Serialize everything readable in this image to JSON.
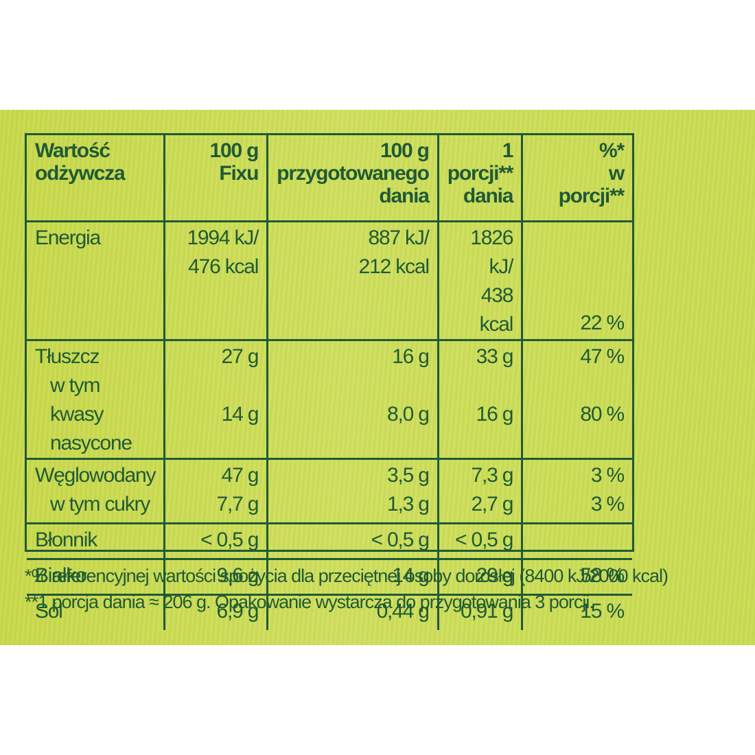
{
  "header": {
    "col0": [
      "Wartość",
      "odżywcza"
    ],
    "col1": [
      "100 g",
      "Fixu"
    ],
    "col2": [
      "100 g",
      "przygotowanego",
      "dania"
    ],
    "col3": [
      "1",
      "porcji**",
      "dania"
    ],
    "col4": [
      "%*",
      "w",
      "porcji**"
    ]
  },
  "rows": {
    "energia": {
      "label": "Energia",
      "v1": [
        "1994 kJ/",
        "476 kcal"
      ],
      "v2": [
        "887 kJ/",
        "212 kcal"
      ],
      "v3": [
        "1826 kJ/",
        "438 kcal"
      ],
      "v4": "22 %"
    },
    "tluszcz": {
      "label": "Tłuszcz",
      "v1": "27 g",
      "v2": "16 g",
      "v3": "33 g",
      "v4": "47 %"
    },
    "kwasy": {
      "label": [
        "w tym kwasy",
        "nasycone"
      ],
      "v1": "14 g",
      "v2": "8,0 g",
      "v3": "16 g",
      "v4": "80 %"
    },
    "weglowodany": {
      "label": "Węglowodany",
      "v1": "47 g",
      "v2": "3,5 g",
      "v3": "7,3 g",
      "v4": "3 %"
    },
    "cukry": {
      "label": "w tym cukry",
      "v1": "7,7 g",
      "v2": "1,3 g",
      "v3": "2,7 g",
      "v4": "3 %"
    },
    "blonnik": {
      "label": "Błonnik",
      "v1": "< 0,5 g",
      "v2": "< 0,5 g",
      "v3": "< 0,5 g",
      "v4": ""
    },
    "bialko": {
      "label": "Białko",
      "v1": "9,6 g",
      "v2": "14 g",
      "v3": "29 g",
      "v4": "58 %"
    },
    "sol": {
      "label": "Sól",
      "v1": "6,9 g",
      "v2": "0,44 g",
      "v3": "0,91 g",
      "v4": "15 %"
    }
  },
  "footnotes": {
    "note1": "*% referencyjnej wartości spożycia dla przeciętnej osoby dorosłej (8400 kJ/2000 kcal)",
    "note2": "**1 porcja dania ≈ 206 g. Opakowanie wystarcza do przygotowania 3 porcji."
  },
  "colors": {
    "text": "#1f5a36",
    "background": "#cadc52"
  }
}
